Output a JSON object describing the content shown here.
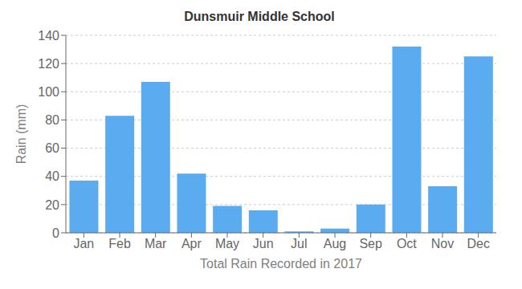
{
  "chart_data": {
    "type": "bar",
    "title": "Dunsmuir Middle School",
    "xlabel": "Total Rain Recorded in 2017",
    "ylabel": "Rain (mm)",
    "categories": [
      "Jan",
      "Feb",
      "Mar",
      "Apr",
      "May",
      "Jun",
      "Jul",
      "Aug",
      "Sep",
      "Oct",
      "Nov",
      "Dec"
    ],
    "values": [
      37,
      83,
      107,
      42,
      19,
      16,
      1,
      3,
      20,
      132,
      33,
      125
    ],
    "color": "#5aabf0",
    "ylim": [
      0,
      140
    ],
    "yticks": [
      0,
      20,
      40,
      60,
      80,
      100,
      120,
      140
    ],
    "grid": true
  }
}
